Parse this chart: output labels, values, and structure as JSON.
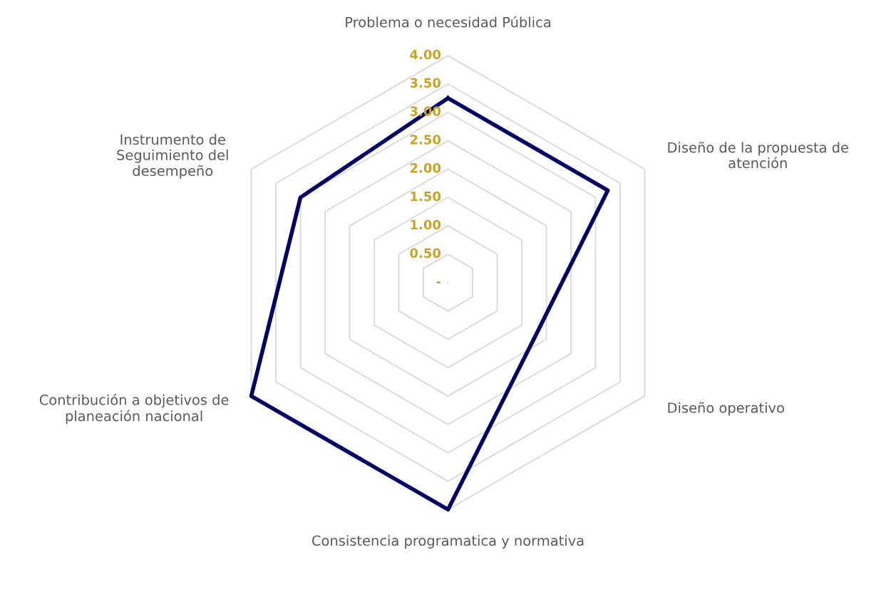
{
  "chart_data": {
    "type": "radar",
    "categories": [
      "Problema o necesidad Pública",
      "Diseño de la propuesta de atención",
      "Diseño operativo",
      "Consistencia programatica y normativa",
      "Contribución a objetivos de planeación nacional",
      "Instrumento de Seguimiento del desempeño"
    ],
    "series": [
      {
        "color": "#000066",
        "values": [
          3.25,
          3.25,
          1.8,
          4.0,
          4.0,
          3.0
        ]
      }
    ],
    "ylim": [
      0,
      4
    ],
    "yticks": [
      {
        "value": 0,
        "label": "-"
      },
      {
        "value": 0.5,
        "label": "0.50"
      },
      {
        "value": 1,
        "label": "1.00"
      },
      {
        "value": 1.5,
        "label": "1.50"
      },
      {
        "value": 2,
        "label": "2.00"
      },
      {
        "value": 2.5,
        "label": "2.50"
      },
      {
        "value": 3,
        "label": "3.00"
      },
      {
        "value": 3.5,
        "label": "3.50"
      },
      {
        "value": 4,
        "label": "4.00"
      }
    ],
    "grid": true
  }
}
